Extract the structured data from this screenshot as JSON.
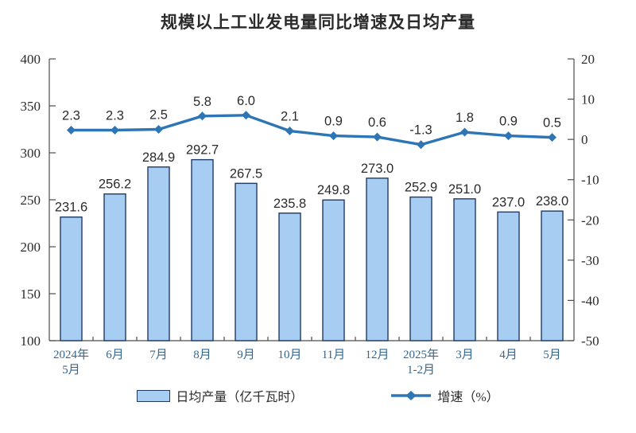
{
  "chart_data": {
    "type": "combo_bar_line",
    "title": "规模以上工业发电量同比增速及日均产量",
    "categories": [
      [
        "2024年",
        "5月"
      ],
      [
        "6月"
      ],
      [
        "7月"
      ],
      [
        "8月"
      ],
      [
        "9月"
      ],
      [
        "10月"
      ],
      [
        "11月"
      ],
      [
        "12月"
      ],
      [
        "2025年",
        "1-2月"
      ],
      [
        "3月"
      ],
      [
        "4月"
      ],
      [
        "5月"
      ]
    ],
    "series": [
      {
        "name": "日均产量（亿千瓦时）",
        "type": "bar",
        "axis": "left",
        "values": [
          231.6,
          256.2,
          284.9,
          292.7,
          267.5,
          235.8,
          249.8,
          273.0,
          252.9,
          251.0,
          237.0,
          238.0
        ]
      },
      {
        "name": "增速（%）",
        "type": "line",
        "axis": "right",
        "values": [
          2.3,
          2.3,
          2.5,
          5.8,
          6.0,
          2.1,
          0.9,
          0.6,
          -1.3,
          1.8,
          0.9,
          0.5
        ]
      }
    ],
    "left_axis": {
      "min": 100,
      "max": 400,
      "step": 50
    },
    "right_axis": {
      "min": -50,
      "max": 20,
      "step": 10
    },
    "grid": false,
    "legend_position": "bottom",
    "colors": {
      "bar_fill": "#A7CDF2",
      "bar_border": "#1F3B63",
      "line": "#2E75B6",
      "axis": "#4D4D4D",
      "x_label": "#35678F"
    }
  }
}
